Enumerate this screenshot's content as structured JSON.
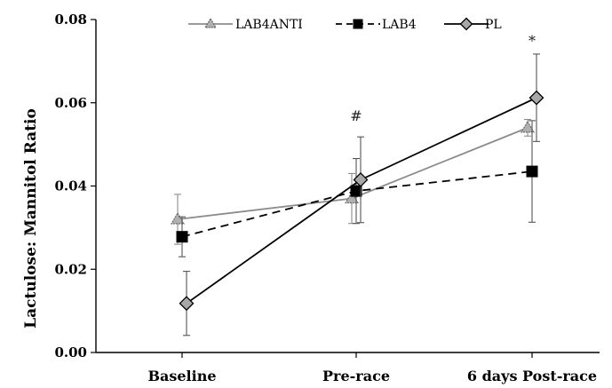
{
  "chart_data": {
    "type": "line",
    "ylabel": "Lactulose: Mannitol Ratio",
    "xlabel": "",
    "ylim": [
      0,
      0.08
    ],
    "yticks": [
      "0.00",
      "0.02",
      "0.04",
      "0.06",
      "0.08"
    ],
    "categories": [
      "Baseline",
      "Pre-race",
      "6 days Post-race"
    ],
    "legend_position": "top",
    "grid": false,
    "series": [
      {
        "name": "LAB4ANTI",
        "values": [
          0.032,
          0.037,
          0.054
        ],
        "errors": [
          0.006,
          0.006,
          0.002
        ],
        "color": "#8c8c8c",
        "marker": "triangle",
        "dash": "solid"
      },
      {
        "name": "LAB4",
        "values": [
          0.0278,
          0.0388,
          0.0435
        ],
        "errors": [
          0.0048,
          0.0078,
          0.0122
        ],
        "color": "#000000",
        "marker": "square",
        "dash": "dashed"
      },
      {
        "name": "PL",
        "values": [
          0.0118,
          0.0415,
          0.0612
        ],
        "errors": [
          0.0077,
          0.0103,
          0.0105
        ],
        "color": "#000000",
        "marker": "diamond",
        "dash": "solid"
      }
    ],
    "annotations": [
      {
        "text": "#",
        "category": "Pre-race",
        "y": 0.057
      },
      {
        "text": "*",
        "category": "6 days Post-race",
        "y": 0.075
      }
    ]
  }
}
